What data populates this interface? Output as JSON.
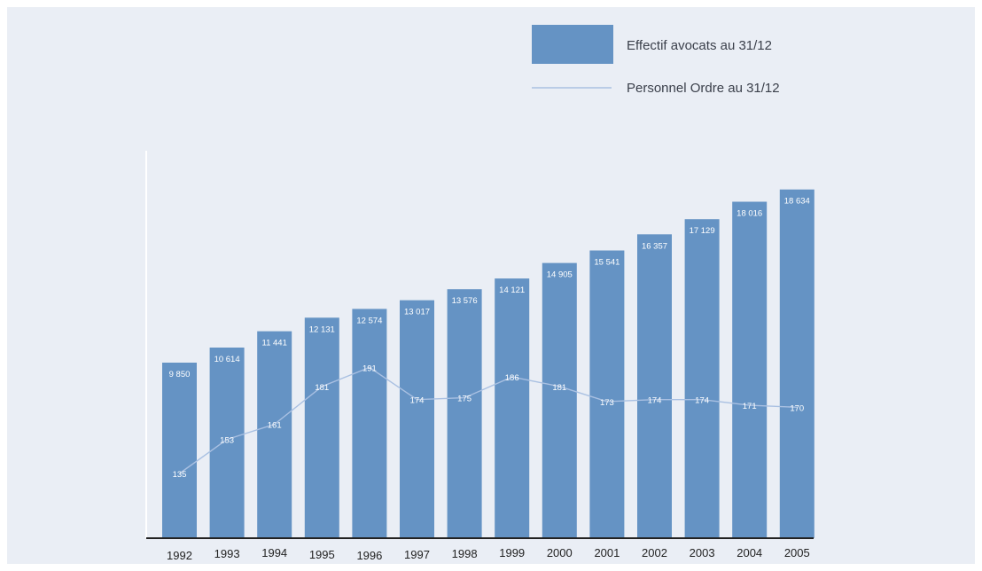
{
  "chart_data": {
    "type": "bar",
    "categories": [
      "1992",
      "1993",
      "1994",
      "1995",
      "1996",
      "1997",
      "1998",
      "1999",
      "2000",
      "2001",
      "2002",
      "2003",
      "2004",
      "2005"
    ],
    "series": [
      {
        "name": "Effectif avocats au 31/12",
        "kind": "bar",
        "values": [
          9850,
          10614,
          11441,
          12131,
          12574,
          13017,
          13576,
          14121,
          14905,
          15541,
          16357,
          17129,
          18016,
          18634
        ],
        "labels": [
          "9 850",
          "10 614",
          "11 441",
          "12 131",
          "12 574",
          "13 017",
          "13 576",
          "14 121",
          "14 905",
          "15 541",
          "16 357",
          "17 129",
          "18 016",
          "18 634"
        ]
      },
      {
        "name": "Personnel Ordre au 31/12",
        "kind": "line",
        "values": [
          135,
          153,
          161,
          181,
          191,
          174,
          175,
          186,
          181,
          173,
          174,
          174,
          171,
          170
        ],
        "labels": [
          "135",
          "153",
          "161",
          "181",
          "191",
          "174",
          "175",
          "186",
          "181",
          "173",
          "174",
          "174",
          "171",
          "170"
        ]
      }
    ],
    "legend": {
      "placement": "top-right",
      "bar_label": "Effectif avocats au 31/12",
      "line_label": "Personnel Ordre au 31/12"
    },
    "title": "",
    "xlabel": "",
    "ylabel": "",
    "grid": false,
    "colors": {
      "background": "#eaeef5",
      "bar": "#6593c4",
      "line": "#a9c0e2",
      "axis": "#222222"
    }
  }
}
